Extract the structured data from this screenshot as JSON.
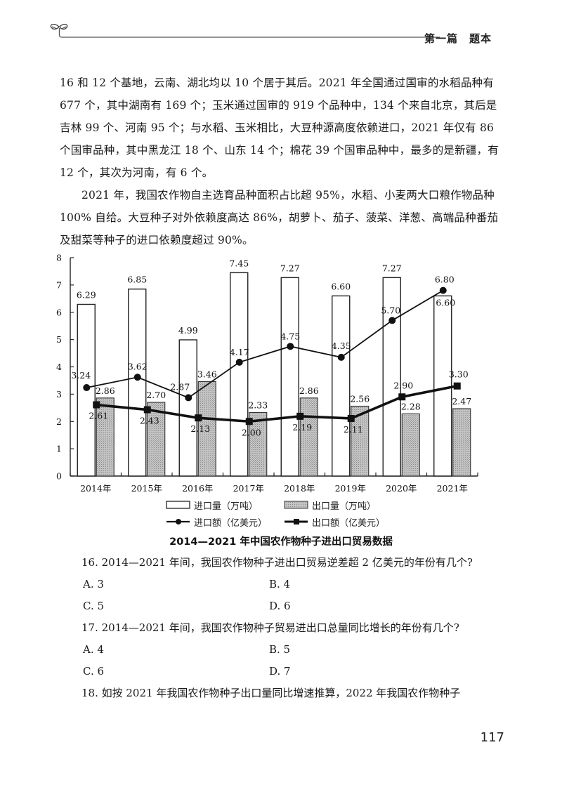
{
  "header": {
    "section_title": "第一篇　题本",
    "icon": "sprout-icon"
  },
  "body_text": {
    "paragraph_1": "16 和 12 个基地，云南、湖北均以 10 个居于其后。2021 年全国通过国审的水稻品种有 677 个，其中湖南有 169 个；玉米通过国审的 919 个品种中，134 个来自北京，其后是吉林 99 个、河南 95 个；与水稻、玉米相比，大豆种源高度依赖进口，2021 年仅有 86 个国审品种，其中黑龙江 18 个、山东 14 个；棉花 39 个国审品种中，最多的是新疆，有 12 个，其次为河南，有 6 个。",
    "paragraph_2": "2021 年，我国农作物自主选育品种面积占比超 95%，水稻、小麦两大口粮作物品种 100% 自给。大豆种子对外依赖度高达 86%，胡萝卜、茄子、菠菜、洋葱、高端品种番茄及甜菜等种子的进口依赖度超过 90%。"
  },
  "chart_data": {
    "type": "bar",
    "title": "2014—2021 年中国农作物种子进出口贸易数据",
    "categories": [
      "2014年",
      "2015年",
      "2016年",
      "2017年",
      "2018年",
      "2019年",
      "2020年",
      "2021年"
    ],
    "series": [
      {
        "name": "进口量（万吨）",
        "kind": "bar",
        "style": "white",
        "values": [
          6.29,
          6.85,
          4.99,
          7.45,
          7.27,
          6.6,
          7.27,
          6.6
        ]
      },
      {
        "name": "出口量（万吨）",
        "kind": "bar",
        "style": "hatched-gray",
        "values": [
          2.86,
          2.7,
          3.46,
          2.33,
          2.86,
          2.56,
          2.28,
          2.47
        ]
      },
      {
        "name": "进口额（亿美元）",
        "kind": "line",
        "marker": "circle",
        "values": [
          3.24,
          3.62,
          2.87,
          4.17,
          4.75,
          4.35,
          5.7,
          6.8
        ]
      },
      {
        "name": "出口额（亿美元）",
        "kind": "line",
        "marker": "square",
        "values": [
          2.61,
          2.43,
          2.13,
          2.0,
          2.19,
          2.11,
          2.9,
          3.3
        ]
      }
    ],
    "xlabel": "",
    "ylabel": "",
    "ylim": [
      0,
      8
    ],
    "yticks": [
      0,
      1,
      2,
      3,
      4,
      5,
      6,
      7,
      8
    ],
    "grid": false,
    "legend_position": "bottom"
  },
  "legend": {
    "items": [
      {
        "label": "进口量（万吨）",
        "icon": "white-bar-swatch"
      },
      {
        "label": "出口量（万吨）",
        "icon": "gray-bar-swatch"
      },
      {
        "label": "进口额（亿美元）",
        "icon": "circle-line-swatch"
      },
      {
        "label": "出口额（亿美元）",
        "icon": "square-line-swatch"
      }
    ]
  },
  "caption": "2014—2021 年中国农作物种子进出口贸易数据",
  "questions": [
    {
      "stem": "16. 2014—2021 年间，我国农作物种子进出口贸易逆差超 2 亿美元的年份有几个?",
      "options": [
        "A. 3",
        "B. 4",
        "C. 5",
        "D. 6"
      ]
    },
    {
      "stem": "17. 2014—2021 年间，我国农作物种子贸易进出口总量同比增长的年份有几个?",
      "options": [
        "A. 4",
        "B. 5",
        "C. 6",
        "D. 7"
      ]
    },
    {
      "stem": "18. 如按 2021 年我国农作物种子出口量同比增速推算，2022 年我国农作物种子",
      "options": []
    }
  ],
  "page_number": "117",
  "colors": {
    "ink": "#1a1a1a",
    "export_bar_fill": "#b9b9b9",
    "import_bar_fill": "#ffffff"
  }
}
